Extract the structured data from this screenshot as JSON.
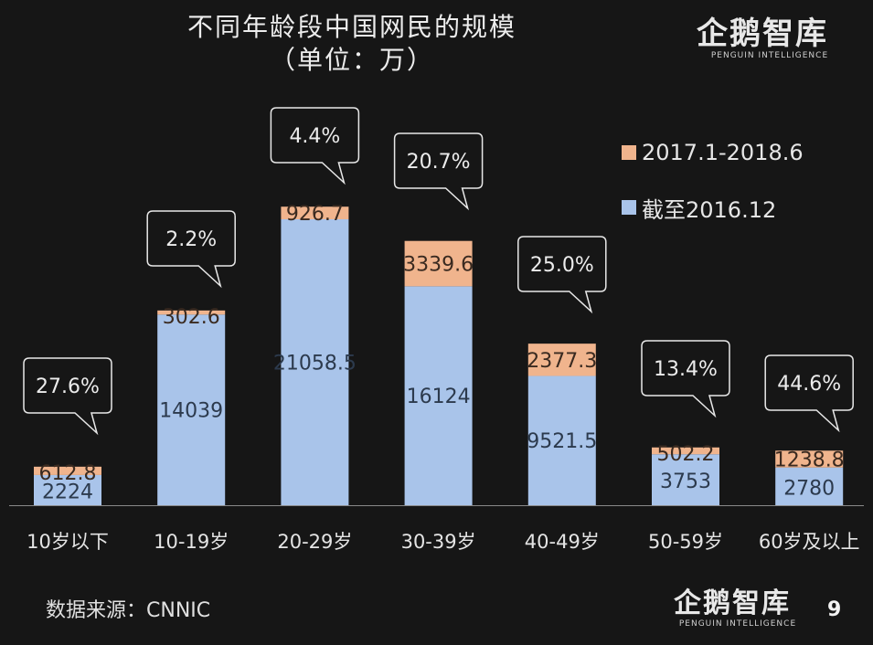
{
  "title_line1": "不同年龄段中国网民的规模",
  "title_line2": "（单位：万）",
  "logo": {
    "chinese": "企鹅智库",
    "english": "PENGUIN INTELLIGENCE"
  },
  "source": "数据来源：CNNIC",
  "page_number": "9",
  "colors": {
    "base": "#a9c4ea",
    "new": "#f0b48d",
    "background": "#161616",
    "text": "#e6e6e6"
  },
  "legend": [
    {
      "label": "2017.1-2018.6",
      "color": "#f0b48d"
    },
    {
      "label": "截至2016.12",
      "color": "#a9c4ea"
    }
  ],
  "chart_data": {
    "type": "bar",
    "stacked": true,
    "title": "不同年龄段中国网民的规模（单位：万）",
    "categories": [
      "10岁以下",
      "10-19岁",
      "20-29岁",
      "30-39岁",
      "40-49岁",
      "50-59岁",
      "60岁及以上"
    ],
    "series": [
      {
        "name": "截至2016.12",
        "values": [
          2224,
          14039,
          21058.5,
          16124,
          9521.5,
          3753,
          2780
        ],
        "labels": [
          "2224",
          "14039",
          "21058.5",
          "16124",
          "9521.5",
          "3753",
          "2780"
        ]
      },
      {
        "name": "2017.1-2018.6",
        "values": [
          612.8,
          302.6,
          926.7,
          3339.6,
          2377.3,
          502.2,
          1238.8
        ],
        "labels": [
          "612.8",
          "302.6",
          "926.7",
          "3339.6",
          "2377.3",
          "502.2",
          "1238.8"
        ]
      }
    ],
    "growth_rates": [
      "27.6%",
      "2.2%",
      "4.4%",
      "20.7%",
      "25.0%",
      "13.4%",
      "44.6%"
    ],
    "ylim": [
      0,
      22500
    ],
    "xlabel": "",
    "ylabel": ""
  }
}
